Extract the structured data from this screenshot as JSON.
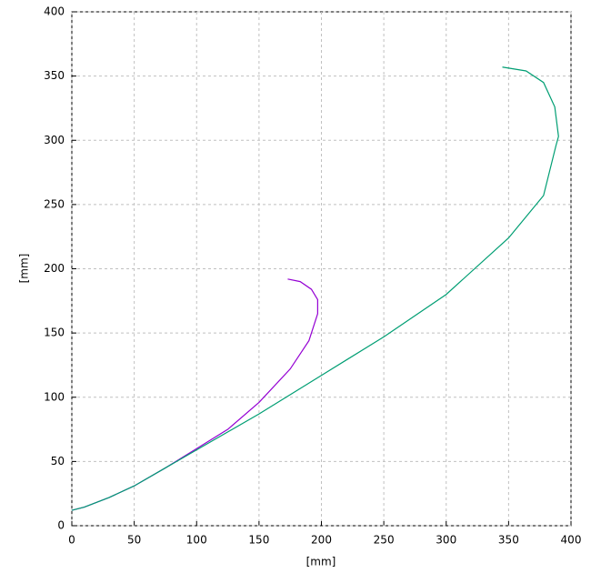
{
  "chart_data": {
    "type": "line",
    "xlabel": "[mm]",
    "ylabel": "[mm]",
    "xlim": [
      0,
      400
    ],
    "ylim": [
      0,
      400
    ],
    "xticks": [
      0,
      50,
      100,
      150,
      200,
      250,
      300,
      350,
      400
    ],
    "yticks": [
      0,
      50,
      100,
      150,
      200,
      250,
      300,
      350,
      400
    ],
    "grid": true,
    "series": [
      {
        "color": "#9400d3",
        "x": [
          0,
          10,
          30,
          50,
          75,
          100,
          125,
          150,
          175,
          190,
          197,
          197,
          192,
          183,
          173
        ],
        "values": [
          12,
          14.5,
          22,
          31,
          45,
          60,
          75,
          96,
          122,
          144,
          165,
          176,
          184,
          190,
          192
        ]
      },
      {
        "color": "#009e73",
        "x": [
          0,
          10,
          30,
          50,
          75,
          100,
          150,
          200,
          250,
          300,
          350,
          378,
          388,
          390,
          387,
          378,
          364,
          345
        ],
        "values": [
          12,
          14.5,
          22,
          31,
          45,
          59,
          87,
          117,
          147,
          180,
          224,
          257,
          296,
          303,
          326,
          345,
          354,
          357
        ]
      }
    ]
  }
}
